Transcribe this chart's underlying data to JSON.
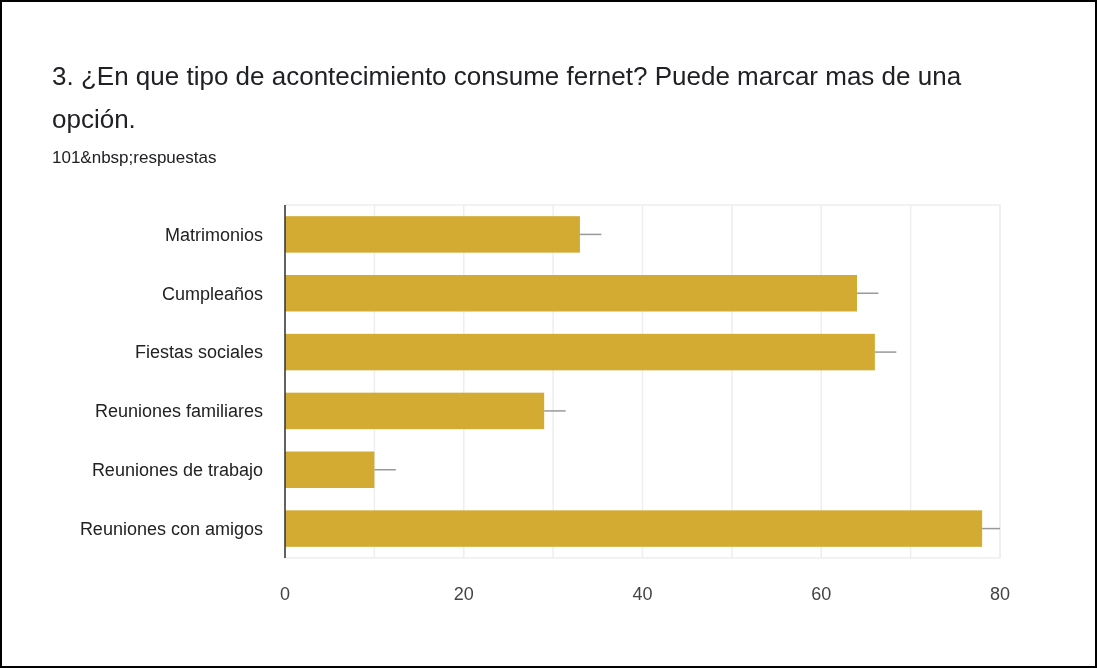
{
  "chart_data": {
    "type": "bar",
    "orientation": "horizontal",
    "title": "3. ¿En que tipo de acontecimiento consume fernet? Puede marcar mas de una opción.",
    "subtitle": "101&nbsp;respuestas",
    "categories": [
      "Matrimonios",
      "Cumpleaños",
      "Fiestas sociales",
      "Reuniones familiares",
      "Reuniones de trabajo",
      "Reuniones con amigos"
    ],
    "values": [
      33,
      64,
      66,
      29,
      10,
      78
    ],
    "errors": [
      [
        33,
        35.4
      ],
      [
        64,
        66.4
      ],
      [
        66,
        68.4
      ],
      [
        29,
        31.4
      ],
      [
        10,
        12.4
      ],
      [
        78,
        80
      ]
    ],
    "color": "#d3ab33",
    "xlim": [
      0,
      80
    ],
    "xticks": [
      0,
      {
        "value": 10,
        "label": null
      },
      20,
      {
        "value": 30,
        "label": null
      },
      40,
      {
        "value": 50,
        "label": null
      },
      60,
      {
        "value": 70,
        "label": null
      },
      80
    ],
    "grid": "x"
  }
}
